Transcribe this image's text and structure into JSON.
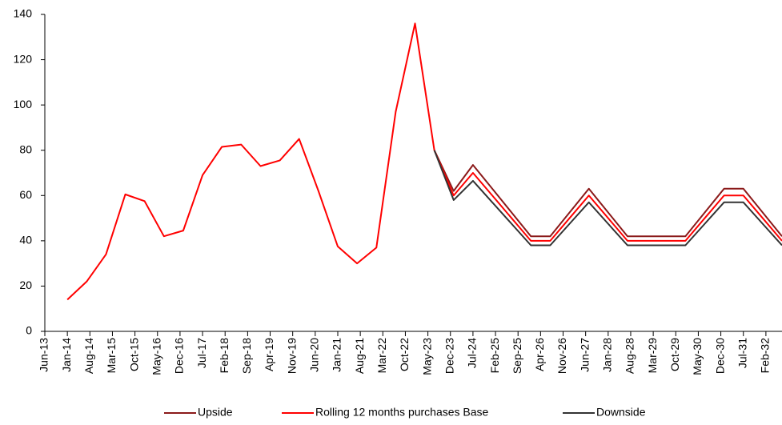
{
  "chart_data": {
    "type": "line",
    "x": [
      "2014-01",
      "2014-07",
      "2015-01",
      "2015-07",
      "2016-01",
      "2016-07",
      "2017-01",
      "2017-07",
      "2018-01",
      "2018-07",
      "2019-01",
      "2019-07",
      "2020-01",
      "2020-07",
      "2021-01",
      "2021-07",
      "2022-01",
      "2022-07",
      "2023-01",
      "2023-07",
      "2024-01",
      "2024-07",
      "2025-01",
      "2025-07",
      "2026-01",
      "2026-07",
      "2027-01",
      "2027-07",
      "2028-01",
      "2028-07",
      "2029-01",
      "2029-07",
      "2030-01",
      "2030-07",
      "2031-01",
      "2031-07",
      "2032-01",
      "2032-07"
    ],
    "series": [
      {
        "name": "Upside",
        "color": "#8b1a1a",
        "values": [
          null,
          null,
          null,
          null,
          null,
          null,
          null,
          null,
          null,
          null,
          null,
          null,
          null,
          null,
          null,
          null,
          null,
          null,
          null,
          80,
          62,
          73.5,
          63,
          52.5,
          42,
          42,
          52.5,
          63,
          52.5,
          42,
          42,
          42,
          42,
          52.5,
          63,
          63,
          52.5,
          42
        ]
      },
      {
        "name": "Rolling 12 months purchases Base",
        "color": "#ff0000",
        "values": [
          14,
          22,
          34,
          60.5,
          57.5,
          42,
          44.5,
          69,
          81.5,
          82.5,
          73,
          75.5,
          85,
          62,
          37.5,
          30,
          37,
          97,
          136,
          80,
          60,
          70,
          60,
          50,
          40,
          40,
          50,
          60,
          50,
          40,
          40,
          40,
          40,
          50,
          60,
          60,
          50,
          40
        ]
      },
      {
        "name": "Downside",
        "color": "#333333",
        "values": [
          null,
          null,
          null,
          null,
          null,
          null,
          null,
          null,
          null,
          null,
          null,
          null,
          null,
          null,
          null,
          null,
          null,
          null,
          null,
          80,
          58,
          66.5,
          57,
          47.5,
          38,
          38,
          47.5,
          57,
          47.5,
          38,
          38,
          38,
          38,
          47.5,
          57,
          57,
          47.5,
          38
        ]
      }
    ],
    "xlim": [
      "2013-06",
      "2032-07"
    ],
    "xticks": [
      {
        "value": "2013-06",
        "label": "Jun-13"
      },
      {
        "value": "2014-01",
        "label": "Jan-14"
      },
      {
        "value": "2014-08",
        "label": "Aug-14"
      },
      {
        "value": "2015-03",
        "label": "Mar-15"
      },
      {
        "value": "2015-10",
        "label": "Oct-15"
      },
      {
        "value": "2016-05",
        "label": "May-16"
      },
      {
        "value": "2016-12",
        "label": "Dec-16"
      },
      {
        "value": "2017-07",
        "label": "Jul-17"
      },
      {
        "value": "2018-02",
        "label": "Feb-18"
      },
      {
        "value": "2018-09",
        "label": "Sep-18"
      },
      {
        "value": "2019-04",
        "label": "Apr-19"
      },
      {
        "value": "2019-11",
        "label": "Nov-19"
      },
      {
        "value": "2020-06",
        "label": "Jun-20"
      },
      {
        "value": "2021-01",
        "label": "Jan-21"
      },
      {
        "value": "2021-08",
        "label": "Aug-21"
      },
      {
        "value": "2022-03",
        "label": "Mar-22"
      },
      {
        "value": "2022-10",
        "label": "Oct-22"
      },
      {
        "value": "2023-05",
        "label": "May-23"
      },
      {
        "value": "2023-12",
        "label": "Dec-23"
      },
      {
        "value": "2024-07",
        "label": "Jul-24"
      },
      {
        "value": "2025-02",
        "label": "Feb-25"
      },
      {
        "value": "2025-09",
        "label": "Sep-25"
      },
      {
        "value": "2026-04",
        "label": "Apr-26"
      },
      {
        "value": "2026-11",
        "label": "Nov-26"
      },
      {
        "value": "2027-06",
        "label": "Jun-27"
      },
      {
        "value": "2028-01",
        "label": "Jan-28"
      },
      {
        "value": "2028-08",
        "label": "Aug-28"
      },
      {
        "value": "2029-03",
        "label": "Mar-29"
      },
      {
        "value": "2029-10",
        "label": "Oct-29"
      },
      {
        "value": "2030-05",
        "label": "May-30"
      },
      {
        "value": "2030-12",
        "label": "Dec-30"
      },
      {
        "value": "2031-07",
        "label": "Jul-31"
      },
      {
        "value": "2032-02",
        "label": "Feb-32"
      }
    ],
    "ylim": [
      0,
      140
    ],
    "yticks": [
      0,
      20,
      40,
      60,
      80,
      100,
      120,
      140
    ],
    "grid": false,
    "legend": "bottom"
  }
}
